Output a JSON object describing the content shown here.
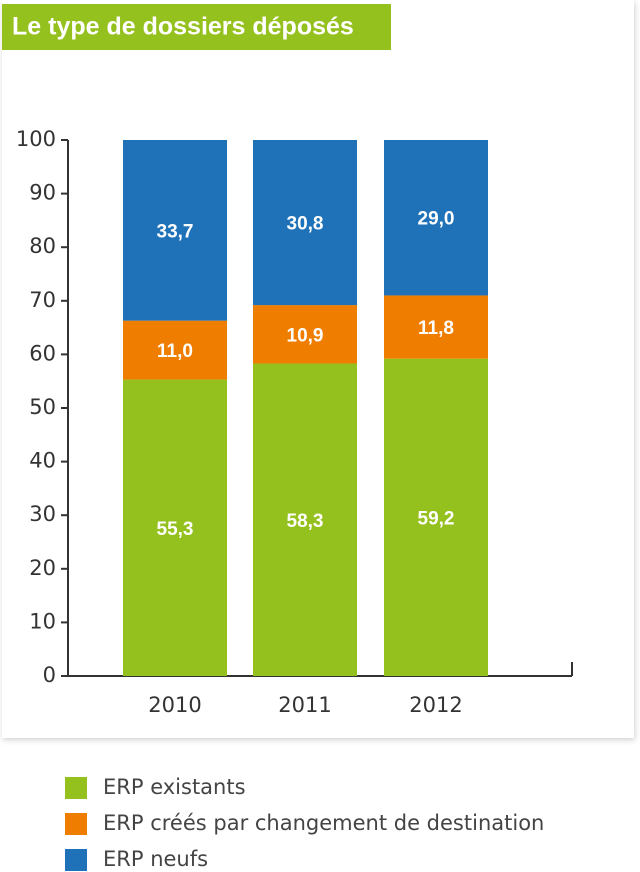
{
  "chart_data": {
    "type": "stacked_bar",
    "title": "Le type de dossiers déposés",
    "categories": [
      "2010",
      "2011",
      "2012"
    ],
    "series": [
      {
        "name": "ERP existants",
        "color": "#95c11f",
        "values": [
          55.3,
          58.3,
          59.2
        ],
        "value_labels": [
          "55,3",
          "58,3",
          "59,2"
        ]
      },
      {
        "name": "ERP créés par changement de destination",
        "color": "#ef7d00",
        "values": [
          11.0,
          10.9,
          11.8
        ],
        "value_labels": [
          "11,0",
          "10,9",
          "11,8"
        ]
      },
      {
        "name": "ERP neufs",
        "color": "#1f72b8",
        "values": [
          33.7,
          30.8,
          29.0
        ],
        "value_labels": [
          "33,7",
          "30,8",
          "29,0"
        ]
      }
    ],
    "ylim": [
      0,
      100
    ],
    "yticks": [
      0,
      10,
      20,
      30,
      40,
      50,
      60,
      70,
      80,
      90,
      100
    ],
    "grid": false
  }
}
